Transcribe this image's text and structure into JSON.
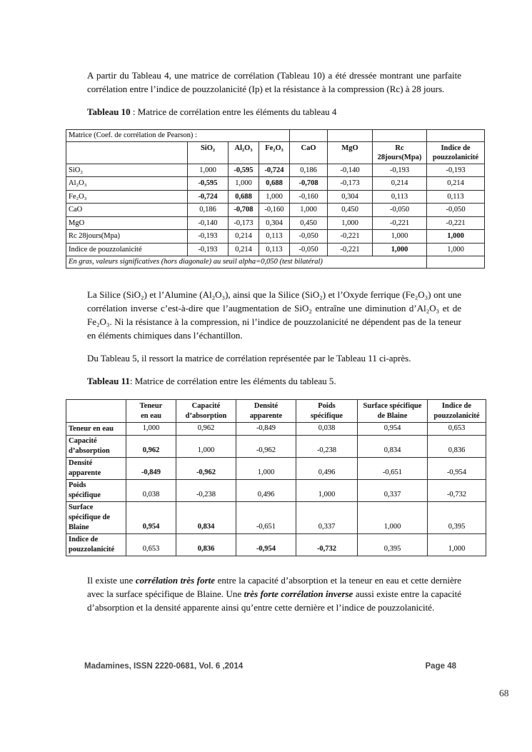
{
  "colors": {
    "ink": "#212121",
    "table_border": "#2e2e2e",
    "footer_text": "#454545"
  },
  "content": {
    "p1": "A partir du Tableau 4, une matrice de corrélation (Tableau 10) a été dressée montrant une parfaite corrélation entre l’indice de pouzzolanicité (Ip) et la résistance à la compression (Rc) à 28 jours.",
    "t10_caption_label": "Tableau 10",
    "t10_caption_text": " : Matrice de corrélation entre les éléments du tableau 4",
    "p2": "La Silice (SiO₂) et l’Alumine (Al₂O₃), ainsi que la Silice (SiO₂) et l’Oxyde ferrique (Fe₂O₃) ont une corrélation inverse c’est-à-dire que l’augmentation de SiO₂ entraîne une diminution d’Al₂O₃ et de Fe₂O₃. Ni la résistance à la compression, ni l’indice de pouzzolanicité ne dépendent pas de la teneur en éléments chimiques dans l’échantillon.",
    "p3": "Du Tableau 5, il ressort la matrice de corrélation représentée par le Tableau 11 ci-après.",
    "t11_caption_label": "Tableau 11",
    "t11_caption_text": ": Matrice de corrélation entre les éléments du tableau 5.",
    "p4": {
      "s1": "Il existe une ",
      "s2": "corrélation très forte",
      "s3": " entre la capacité d’absorption et la teneur en eau et cette dernière avec la surface spécifique de Blaine. Une ",
      "s4": "très forte corrélation inverse",
      "s5": " aussi existe entre la capacité d’absorption et la densité apparente ainsi qu’entre cette dernière et l’indice de pouzzolanicité."
    }
  },
  "table10": {
    "corner_header": "Matrice (Coef. de corrélation de Pearson) :",
    "col_headers": [
      "SiO₂",
      "Al₂O₃",
      "Fe₂O₃",
      "CaO",
      "MgO",
      "Rc\n28jours(Mpa)",
      "Indice de\npouzzolanicité"
    ],
    "rows": [
      {
        "label": "SiO₂",
        "values": [
          "1,000",
          "-0,595",
          "-0,724",
          "0,186",
          "-0,140",
          "-0,193",
          "-0,193"
        ],
        "bold": [
          false,
          true,
          true,
          false,
          false,
          false,
          false
        ]
      },
      {
        "label": "Al₂O₃",
        "values": [
          "-0,595",
          "1,000",
          "0,688",
          "-0,708",
          "-0,173",
          "0,214",
          "0,214"
        ],
        "bold": [
          true,
          false,
          true,
          true,
          false,
          false,
          false
        ]
      },
      {
        "label": "Fe₂O₃",
        "values": [
          "-0,724",
          "0,688",
          "1,000",
          "-0,160",
          "0,304",
          "0,113",
          "0,113"
        ],
        "bold": [
          true,
          true,
          false,
          false,
          false,
          false,
          false
        ]
      },
      {
        "label": "CaO",
        "values": [
          "0,186",
          "-0,708",
          "-0,160",
          "1,000",
          "0,450",
          "-0,050",
          "-0,050"
        ],
        "bold": [
          false,
          true,
          false,
          false,
          false,
          false,
          false
        ]
      },
      {
        "label": "MgO",
        "values": [
          "-0,140",
          "-0,173",
          "0,304",
          "0,450",
          "1,000",
          "-0,221",
          "-0,221"
        ],
        "bold": [
          false,
          false,
          false,
          false,
          false,
          false,
          false
        ]
      },
      {
        "label": "Rc  28jours(Mpa)",
        "values": [
          "-0,193",
          "0,214",
          "0,113",
          "-0,050",
          "-0,221",
          "1,000",
          "1,000"
        ],
        "bold": [
          false,
          false,
          false,
          false,
          false,
          false,
          true
        ]
      },
      {
        "label": "Indice de pouzzolanicité",
        "values": [
          "-0,193",
          "0,214",
          "0,113",
          "-0,050",
          "-0,221",
          "1,000",
          "1,000"
        ],
        "bold": [
          false,
          false,
          false,
          false,
          false,
          true,
          false
        ]
      }
    ],
    "note": "En gras, valeurs significatives (hors diagonale) au seuil alpha=0,050 (test bilatéral)"
  },
  "table11": {
    "col_headers": [
      "Teneur\nen eau",
      "Capacité\nd’absorption",
      "Densité\napparente",
      "Poids\nspécifique",
      "Surface spécifique\nde Blaine",
      "Indice de\npouzzolanicité"
    ],
    "rows": [
      {
        "label": "Teneur en eau",
        "values": [
          "1,000",
          "0,962",
          "-0,849",
          "0,038",
          "0,954",
          "0,653"
        ],
        "bold": [
          false,
          false,
          false,
          false,
          false,
          false
        ]
      },
      {
        "label": "Capacité\nd’absorption",
        "values": [
          "0,962",
          "1,000",
          "-0,962",
          "-0,238",
          "0,834",
          "0,836"
        ],
        "bold": [
          true,
          false,
          false,
          false,
          false,
          false
        ]
      },
      {
        "label": "Densité\napparente",
        "values": [
          "-0,849",
          "-0,962",
          "1,000",
          "0,496",
          "-0,651",
          "-0,954"
        ],
        "bold": [
          true,
          true,
          false,
          false,
          false,
          false
        ]
      },
      {
        "label": "Poids\nspécifique",
        "values": [
          "0,038",
          "-0,238",
          "0,496",
          "1,000",
          "0,337",
          "-0,732"
        ],
        "bold": [
          false,
          false,
          false,
          false,
          false,
          false
        ]
      },
      {
        "label": "Surface\nspécifique de\nBlaine",
        "values": [
          "0,954",
          "0,834",
          "-0,651",
          "0,337",
          "1,000",
          "0,395"
        ],
        "bold": [
          true,
          true,
          false,
          false,
          false,
          false
        ]
      },
      {
        "label": "Indice de\npouzzolanicité",
        "values": [
          "0,653",
          "0,836",
          "-0,954",
          "-0,732",
          "0,395",
          "1,000"
        ],
        "bold": [
          false,
          true,
          true,
          true,
          false,
          false
        ]
      }
    ]
  },
  "footer": {
    "journal": "Madamines, ISSN 2220-0681, Vol. 6 ,2014",
    "page_label": "Page 48"
  },
  "page_number": "68"
}
